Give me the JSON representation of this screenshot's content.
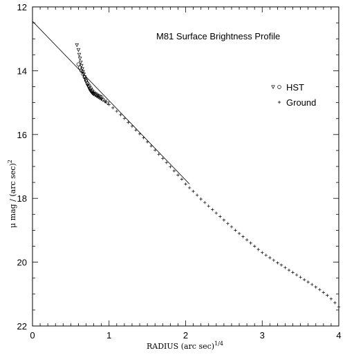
{
  "chart_data": {
    "type": "scatter",
    "title": "M81 Surface Brightness Profile",
    "xlabel": "RADIUS (arc sec)",
    "xlabel_sup": "1/4",
    "ylabel": "μ mag / (arc sec)",
    "ylabel_sup": "2",
    "xlim": [
      0,
      4
    ],
    "ylim": [
      12,
      22
    ],
    "y_inverted": true,
    "x_ticks": [
      0,
      1,
      2,
      3,
      4
    ],
    "y_ticks": [
      12,
      14,
      16,
      18,
      20,
      22
    ],
    "grid": false,
    "legend_position": "top-right",
    "legend": [
      {
        "label": "HST",
        "markers": [
          "triangle",
          "circle"
        ]
      },
      {
        "label": "Ground",
        "markers": [
          "plus"
        ]
      }
    ],
    "fit_line": {
      "x": [
        0,
        2.05
      ],
      "y": [
        12.45,
        17.55
      ]
    },
    "series": [
      {
        "name": "HST",
        "marker": "triangle",
        "x": [
          0.58,
          0.6,
          0.61,
          0.62,
          0.63,
          0.64,
          0.65,
          0.66,
          0.67,
          0.68,
          0.69,
          0.7,
          0.71,
          0.72,
          0.73,
          0.74,
          0.75,
          0.76,
          0.77,
          0.78,
          0.79,
          0.8,
          0.82,
          0.84,
          0.86,
          0.88,
          0.9,
          0.92,
          0.95,
          0.98
        ],
        "y": [
          13.2,
          13.35,
          13.5,
          13.62,
          13.74,
          13.85,
          13.95,
          14.04,
          14.12,
          14.2,
          14.27,
          14.34,
          14.4,
          14.46,
          14.51,
          14.56,
          14.6,
          14.64,
          14.67,
          14.7,
          14.72,
          14.74,
          14.77,
          14.8,
          14.83,
          14.86,
          14.89,
          14.92,
          14.97,
          15.02
        ]
      },
      {
        "name": "HST",
        "marker": "circle",
        "x": [
          0.6,
          0.62,
          0.64,
          0.66,
          0.68,
          0.7,
          0.72,
          0.74,
          0.76,
          0.78,
          0.8,
          0.82,
          0.84,
          0.86,
          0.88,
          0.9
        ],
        "y": [
          13.8,
          13.9,
          14.0,
          14.1,
          14.2,
          14.3,
          14.4,
          14.47,
          14.55,
          14.62,
          14.68,
          14.72,
          14.75,
          14.78,
          14.8,
          14.83
        ]
      },
      {
        "name": "Ground",
        "marker": "plus",
        "x": [
          0.75,
          0.8,
          0.85,
          0.9,
          0.95,
          1.0,
          1.05,
          1.1,
          1.15,
          1.2,
          1.25,
          1.3,
          1.35,
          1.4,
          1.45,
          1.5,
          1.55,
          1.6,
          1.65,
          1.7,
          1.75,
          1.8,
          1.85,
          1.9,
          1.95,
          2.0,
          2.05,
          2.1,
          2.15,
          2.2,
          2.25,
          2.3,
          2.35,
          2.4,
          2.45,
          2.5,
          2.55,
          2.6,
          2.65,
          2.7,
          2.75,
          2.8,
          2.85,
          2.9,
          2.95,
          3.0,
          3.05,
          3.1,
          3.15,
          3.2,
          3.25,
          3.3,
          3.35,
          3.4,
          3.45,
          3.5,
          3.55,
          3.6,
          3.65,
          3.7,
          3.75,
          3.8,
          3.85,
          3.9,
          3.95,
          4.0
        ],
        "y": [
          14.6,
          14.7,
          14.8,
          14.88,
          14.97,
          15.06,
          15.16,
          15.27,
          15.38,
          15.5,
          15.62,
          15.74,
          15.86,
          15.98,
          16.1,
          16.23,
          16.36,
          16.49,
          16.62,
          16.75,
          16.88,
          17.01,
          17.14,
          17.27,
          17.4,
          17.55,
          17.67,
          17.78,
          17.9,
          18.02,
          18.13,
          18.24,
          18.35,
          18.46,
          18.57,
          18.68,
          18.79,
          18.89,
          19.0,
          19.1,
          19.2,
          19.3,
          19.4,
          19.5,
          19.6,
          19.7,
          19.78,
          19.86,
          19.94,
          20.02,
          20.09,
          20.17,
          20.25,
          20.32,
          20.4,
          20.47,
          20.55,
          20.62,
          20.7,
          20.78,
          20.86,
          20.95,
          21.04,
          21.15,
          21.27,
          21.4
        ]
      }
    ]
  }
}
